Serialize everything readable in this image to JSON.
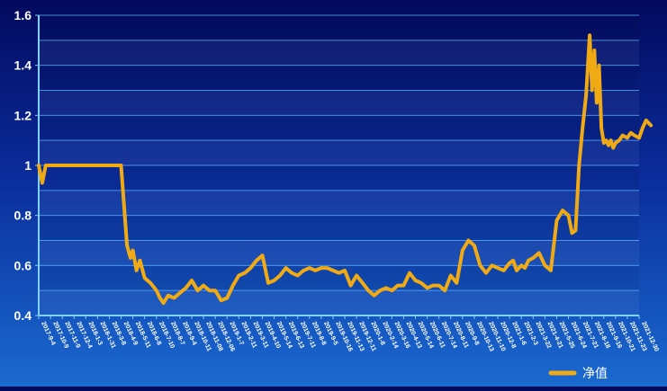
{
  "chart_data": {
    "type": "line",
    "title": "",
    "xlabel": "",
    "ylabel": "",
    "ylim": [
      0.4,
      1.6
    ],
    "yticks": [
      "0.4",
      "0.6",
      "0.8",
      "1",
      "1.2",
      "1.4",
      "1.6"
    ],
    "grid": true,
    "legend_position": "bottom-right",
    "x_tick_labels": [
      "2017-9-4",
      "2017-10-9",
      "2017-11-9",
      "2017-12-4",
      "2018-1-3",
      "2018-1-31",
      "2018-3-8",
      "2018-4-9",
      "2018-5-11",
      "2018-6-8",
      "2018-7-10",
      "2018-8-7",
      "2018-9-4",
      "2018-10-11",
      "2018-11-08",
      "2018-12-06",
      "2019-1-7",
      "2019-2-11",
      "2019-3-11",
      "2019-4-10",
      "2019-5-14",
      "2019-6-13",
      "2019-7-11",
      "2019-8-8",
      "2019-9-5",
      "2019-10-16",
      "2019-11-13",
      "2019-12-11",
      "2020-1-8",
      "2020-2-14",
      "2020-3-16",
      "2020-4-13",
      "2020-5-14",
      "2020-6-11",
      "2020-7-14",
      "2020-8-11",
      "2020-9-8",
      "2020-10-13",
      "2020-11-10",
      "2020-12-8",
      "2021-1-6",
      "2021-2-3",
      "2021-3-22",
      "2021-4-21",
      "2021-5-25",
      "2021-6-24",
      "2021-7-21",
      "2021-8-18",
      "2021-9-16",
      "2021-10-21",
      "2021-11-23",
      "2021-12-30"
    ],
    "series": [
      {
        "name": "净值",
        "color": "#f0aa14",
        "x": [
          0,
          0.3,
          0.6,
          1,
          1.3,
          1.6,
          2,
          2.5,
          3,
          4,
          5,
          6,
          7,
          7.5,
          7.8,
          8,
          8.3,
          8.6,
          9,
          9.5,
          10,
          10.3,
          10.6,
          11,
          11.5,
          12,
          12.5,
          13,
          13.5,
          14,
          14.5,
          15,
          15.5,
          16,
          16.5,
          17,
          17.5,
          18,
          18.5,
          19,
          19.5,
          20,
          20.5,
          21,
          21.5,
          22,
          22.5,
          23,
          23.5,
          24,
          24.5,
          25,
          25.5,
          26,
          26.5,
          27,
          27.5,
          28,
          28.5,
          29,
          29.5,
          30,
          30.5,
          31,
          31.5,
          32,
          32.5,
          33,
          33.5,
          34,
          34.5,
          35,
          35.5,
          36,
          36.5,
          37,
          37.5,
          38,
          38.5,
          39,
          39.5,
          40,
          40.3,
          40.6,
          41,
          41.3,
          41.6,
          42,
          42.5,
          43,
          43.5,
          44,
          44.5,
          45,
          45.3,
          45.6,
          45.9,
          46.2,
          46.5,
          46.8,
          47,
          47.2,
          47.4,
          47.6,
          47.8,
          48,
          48.2,
          48.4,
          48.6,
          48.8,
          49,
          49.3,
          49.6,
          50,
          50.3,
          50.6,
          51,
          51.3,
          51.6,
          52
        ],
        "y": [
          1.0,
          0.93,
          1.0,
          1.0,
          1.0,
          1.0,
          1.0,
          1.0,
          1.0,
          1.0,
          1.0,
          1.0,
          1.0,
          0.68,
          0.63,
          0.66,
          0.58,
          0.62,
          0.55,
          0.53,
          0.5,
          0.47,
          0.45,
          0.48,
          0.47,
          0.49,
          0.51,
          0.54,
          0.5,
          0.52,
          0.5,
          0.5,
          0.46,
          0.47,
          0.52,
          0.56,
          0.57,
          0.59,
          0.62,
          0.64,
          0.53,
          0.54,
          0.56,
          0.59,
          0.57,
          0.56,
          0.58,
          0.59,
          0.58,
          0.59,
          0.59,
          0.58,
          0.57,
          0.58,
          0.52,
          0.56,
          0.53,
          0.5,
          0.48,
          0.5,
          0.51,
          0.5,
          0.52,
          0.52,
          0.57,
          0.54,
          0.53,
          0.51,
          0.52,
          0.52,
          0.5,
          0.56,
          0.53,
          0.66,
          0.7,
          0.68,
          0.6,
          0.57,
          0.6,
          0.59,
          0.58,
          0.61,
          0.62,
          0.58,
          0.6,
          0.59,
          0.62,
          0.63,
          0.65,
          0.6,
          0.58,
          0.78,
          0.82,
          0.8,
          0.73,
          0.74,
          1.0,
          1.15,
          1.28,
          1.52,
          1.3,
          1.46,
          1.25,
          1.4,
          1.15,
          1.09,
          1.1,
          1.08,
          1.1,
          1.07,
          1.09,
          1.1,
          1.12,
          1.11,
          1.13,
          1.12,
          1.11,
          1.15,
          1.18,
          1.16
        ]
      }
    ]
  },
  "legend": {
    "label": "净值"
  }
}
